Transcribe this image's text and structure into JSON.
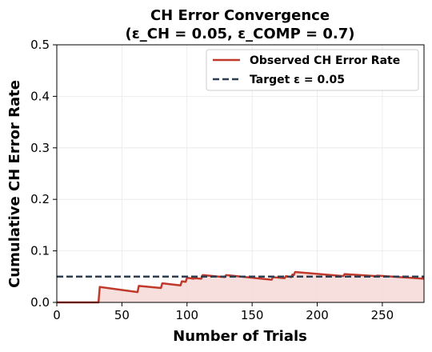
{
  "chart_data": {
    "type": "line",
    "title_line1": "CH Error Convergence",
    "title_line2": "(ε_CH = 0.05, ε_COMP = 0.7)",
    "xlabel": "Number of Trials",
    "ylabel": "Cumulative CH Error Rate",
    "xlim": [
      0,
      282
    ],
    "ylim": [
      0,
      0.5
    ],
    "x_ticks": [
      0,
      50,
      100,
      150,
      200,
      250
    ],
    "x_tick_labels": [
      "0",
      "50",
      "100",
      "150",
      "200",
      "250"
    ],
    "y_ticks": [
      0.0,
      0.1,
      0.2,
      0.3,
      0.4,
      0.5
    ],
    "y_tick_labels": [
      "0.0",
      "0.1",
      "0.2",
      "0.3",
      "0.4",
      "0.5"
    ],
    "grid": true,
    "legend_position": "top-right",
    "series": [
      {
        "name": "Observed CH Error Rate",
        "color": "#c0392b",
        "fill": "#f5d9d7",
        "style": "solid",
        "x": [
          0,
          32,
          33,
          62,
          63,
          80,
          81,
          95,
          96,
          99,
          100,
          105,
          106,
          111,
          112,
          129,
          130,
          165,
          166,
          175,
          176,
          180,
          181,
          182,
          183,
          220,
          221,
          245,
          246,
          282
        ],
        "y": [
          0.0,
          0.0,
          0.03,
          0.02,
          0.032,
          0.028,
          0.037,
          0.033,
          0.041,
          0.04,
          0.048,
          0.046,
          0.047,
          0.046,
          0.053,
          0.049,
          0.053,
          0.044,
          0.049,
          0.047,
          0.051,
          0.049,
          0.054,
          0.053,
          0.059,
          0.051,
          0.055,
          0.051,
          0.052,
          0.046
        ]
      },
      {
        "name": "Target ε = 0.05",
        "color": "#2c3e50",
        "style": "dashed",
        "x": [
          0,
          282
        ],
        "y": [
          0.05,
          0.05
        ]
      }
    ]
  }
}
